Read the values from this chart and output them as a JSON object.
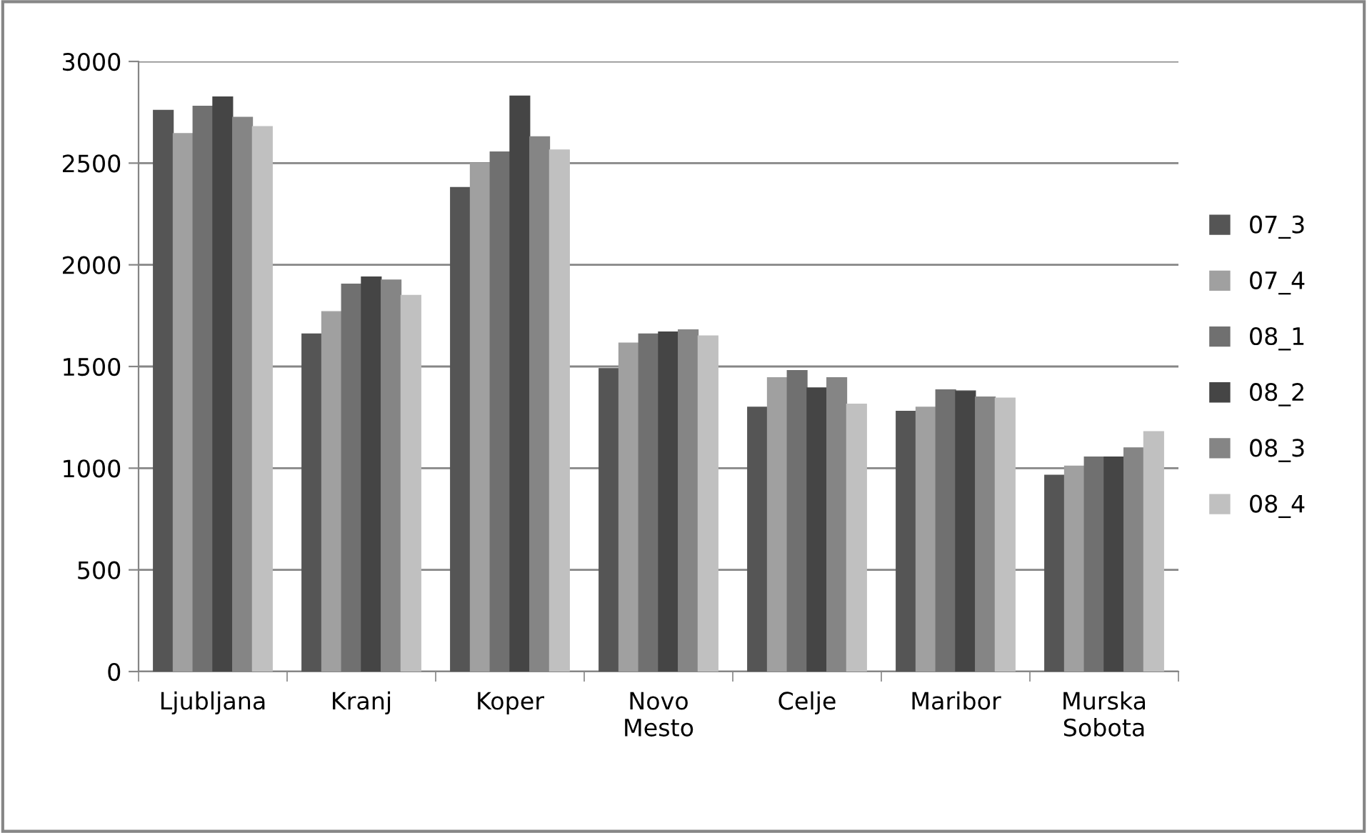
{
  "chart_data": {
    "type": "bar",
    "categories": [
      "Ljubljana",
      "Kranj",
      "Koper",
      "Novo\nMesto",
      "Celje",
      "Maribor",
      "Murska\nSobota"
    ],
    "series": [
      {
        "name": "07_3",
        "color": "#555555",
        "values": [
          2760,
          1660,
          2380,
          1490,
          1300,
          1280,
          965
        ]
      },
      {
        "name": "07_4",
        "color": "#a0a0a0",
        "values": [
          2645,
          1770,
          2500,
          1615,
          1445,
          1300,
          1010
        ]
      },
      {
        "name": "08_1",
        "color": "#707070",
        "values": [
          2780,
          1905,
          2555,
          1660,
          1480,
          1385,
          1055
        ]
      },
      {
        "name": "08_2",
        "color": "#454545",
        "values": [
          2825,
          1940,
          2830,
          1670,
          1395,
          1380,
          1055
        ]
      },
      {
        "name": "08_3",
        "color": "#858585",
        "values": [
          2725,
          1925,
          2630,
          1680,
          1445,
          1350,
          1100
        ]
      },
      {
        "name": "08_4",
        "color": "#c0c0c0",
        "values": [
          2680,
          1850,
          2565,
          1650,
          1315,
          1345,
          1180
        ]
      }
    ],
    "ylim": [
      0,
      3000
    ],
    "yticks": [
      0,
      500,
      1000,
      1500,
      2000,
      2500,
      3000
    ],
    "grid": "y",
    "legend": "right"
  }
}
